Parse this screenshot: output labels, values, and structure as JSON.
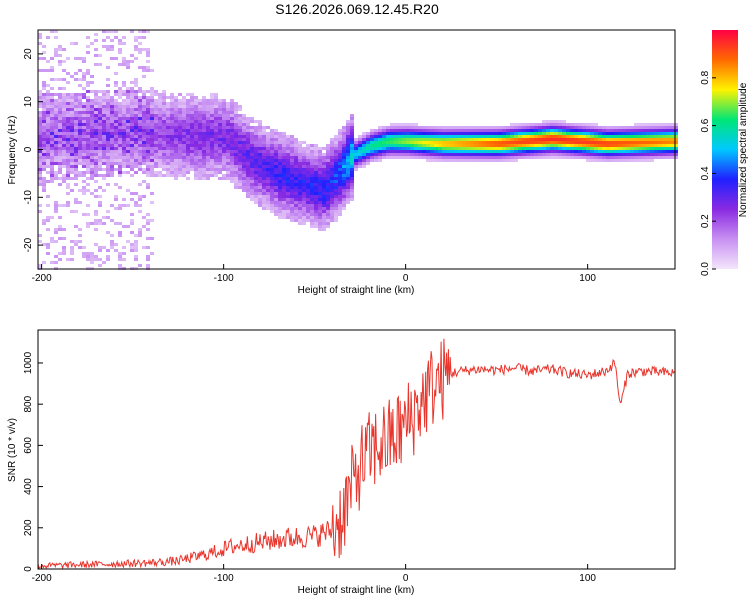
{
  "figure_title": "S126.2026.069.12.45.R20",
  "colors": {
    "snr_line": "#e8362d",
    "axes": "#000000",
    "colormap": [
      "#f3e6fb",
      "#c890f2",
      "#8a2be2",
      "#2020ff",
      "#00c8ff",
      "#00e676",
      "#fff200",
      "#ff6a00",
      "#ff0044"
    ]
  },
  "chart_data": [
    {
      "type": "heatmap",
      "title": "",
      "xlabel": "Height of straight line (km)",
      "ylabel": "Frequency (Hz)",
      "xlim": [
        -202,
        148
      ],
      "ylim": [
        -25,
        25
      ],
      "xticks": [
        -200,
        -100,
        0,
        100
      ],
      "yticks": [
        -20,
        -10,
        0,
        10,
        20
      ],
      "colorbar": {
        "label": "Normalized spectral amplitude",
        "range": [
          0,
          1
        ],
        "ticks": [
          "0.0",
          "0.2",
          "0.4",
          "0.6",
          "0.8"
        ]
      },
      "ridge": {
        "description_points_x": [
          -200,
          -150,
          -120,
          -100,
          -85,
          -70,
          -55,
          -45,
          -38,
          -30,
          -20,
          -10,
          0,
          20,
          50,
          80,
          110,
          148
        ],
        "frequency_hz": [
          3,
          4,
          3,
          3,
          -2,
          -5,
          -7,
          -8,
          -5,
          -1,
          1,
          2,
          2,
          1.5,
          1.5,
          2.5,
          1.5,
          2
        ],
        "amplitude": [
          0.12,
          0.15,
          0.2,
          0.22,
          0.25,
          0.3,
          0.3,
          0.32,
          0.35,
          0.5,
          0.6,
          0.65,
          0.7,
          0.8,
          0.9,
          0.95,
          0.92,
          0.85
        ]
      }
    },
    {
      "type": "line",
      "title": "",
      "xlabel": "Height of straight line (km)",
      "ylabel": "SNR (10 * v/v)",
      "xlim": [
        -202,
        148
      ],
      "ylim": [
        0,
        1160
      ],
      "xticks": [
        -200,
        -100,
        0,
        100
      ],
      "yticks": [
        0,
        200,
        400,
        600,
        800,
        1000
      ],
      "series": [
        {
          "name": "SNR",
          "x": [
            -202,
            -180,
            -160,
            -140,
            -125,
            -110,
            -95,
            -80,
            -65,
            -50,
            -40,
            -35,
            -30,
            -25,
            -20,
            -15,
            -10,
            -5,
            0,
            5,
            10,
            15,
            20,
            25,
            30,
            40,
            50,
            60,
            70,
            80,
            90,
            100,
            110,
            115,
            118,
            122,
            130,
            140,
            148
          ],
          "y": [
            15,
            20,
            25,
            30,
            40,
            70,
            110,
            130,
            150,
            160,
            190,
            260,
            380,
            500,
            560,
            600,
            620,
            650,
            700,
            760,
            830,
            890,
            920,
            950,
            960,
            970,
            965,
            975,
            960,
            970,
            950,
            940,
            960,
            1000,
            790,
            950,
            960,
            955,
            950
          ]
        }
      ]
    }
  ]
}
